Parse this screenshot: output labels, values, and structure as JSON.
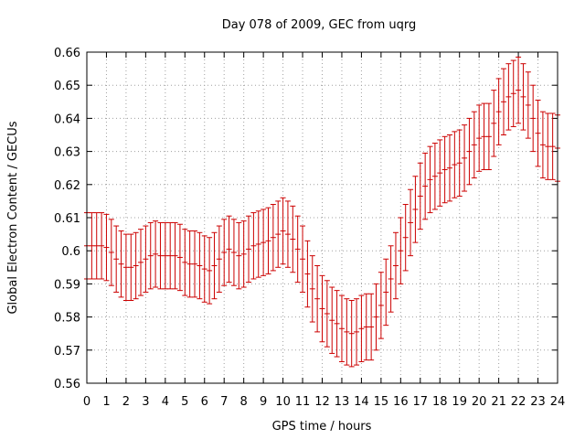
{
  "chart_data": {
    "type": "scatter",
    "title": "Day 078 of 2009, GEC from uqrg",
    "xlabel": "GPS time / hours",
    "ylabel": "Global Electron Content / GECUs",
    "xlim": [
      0,
      24
    ],
    "ylim": [
      0.56,
      0.66
    ],
    "grid": true,
    "x_ticks": [
      "0",
      "1",
      "2",
      "3",
      "4",
      "5",
      "6",
      "7",
      "8",
      "9",
      "10",
      "11",
      "12",
      "13",
      "14",
      "15",
      "16",
      "17",
      "18",
      "19",
      "20",
      "21",
      "22",
      "23",
      "24"
    ],
    "y_ticks": [
      "0.56",
      "0.57",
      "0.58",
      "0.59",
      "0.6",
      "0.61",
      "0.62",
      "0.63",
      "0.64",
      "0.65",
      "0.66"
    ],
    "error_bar": 0.01,
    "series": [
      {
        "color": "#cc0000",
        "x": [
          0,
          0.25,
          0.5,
          0.75,
          1,
          1.25,
          1.5,
          1.75,
          2,
          2.25,
          2.5,
          2.75,
          3,
          3.25,
          3.5,
          3.75,
          4,
          4.25,
          4.5,
          4.75,
          5,
          5.25,
          5.5,
          5.75,
          6,
          6.25,
          6.5,
          6.75,
          7,
          7.25,
          7.5,
          7.75,
          8,
          8.25,
          8.5,
          8.75,
          9,
          9.25,
          9.5,
          9.75,
          10,
          10.25,
          10.5,
          10.75,
          11,
          11.25,
          11.5,
          11.75,
          12,
          12.25,
          12.5,
          12.75,
          13,
          13.25,
          13.5,
          13.75,
          14,
          14.25,
          14.5,
          14.75,
          15,
          15.25,
          15.5,
          15.75,
          16,
          16.25,
          16.5,
          16.75,
          17,
          17.25,
          17.5,
          17.75,
          18,
          18.25,
          18.5,
          18.75,
          19,
          19.25,
          19.5,
          19.75,
          20,
          20.25,
          20.5,
          20.75,
          21,
          21.25,
          21.5,
          21.75,
          22,
          22.25,
          22.5,
          22.75,
          23,
          23.25,
          23.5,
          23.75,
          24
        ],
        "y": [
          0.6015,
          0.6015,
          0.6015,
          0.6015,
          0.601,
          0.5995,
          0.5975,
          0.596,
          0.595,
          0.595,
          0.5955,
          0.5965,
          0.5975,
          0.5985,
          0.599,
          0.5985,
          0.5985,
          0.5985,
          0.5985,
          0.598,
          0.5965,
          0.596,
          0.596,
          0.5955,
          0.5945,
          0.594,
          0.5955,
          0.5975,
          0.5995,
          0.6005,
          0.5995,
          0.5985,
          0.599,
          0.6005,
          0.6015,
          0.602,
          0.6025,
          0.603,
          0.604,
          0.605,
          0.606,
          0.605,
          0.6035,
          0.6005,
          0.5975,
          0.593,
          0.5885,
          0.5855,
          0.5825,
          0.581,
          0.579,
          0.578,
          0.5765,
          0.5755,
          0.575,
          0.5755,
          0.5765,
          0.577,
          0.577,
          0.58,
          0.5835,
          0.5875,
          0.5915,
          0.5955,
          0.6,
          0.604,
          0.6085,
          0.6125,
          0.6165,
          0.6195,
          0.6215,
          0.6225,
          0.6235,
          0.6245,
          0.625,
          0.626,
          0.6265,
          0.628,
          0.63,
          0.632,
          0.634,
          0.6345,
          0.6345,
          0.6385,
          0.642,
          0.645,
          0.6465,
          0.6475,
          0.6485,
          0.6465,
          0.644,
          0.64,
          0.6355,
          0.632,
          0.6315,
          0.6315,
          0.631
        ]
      }
    ]
  }
}
